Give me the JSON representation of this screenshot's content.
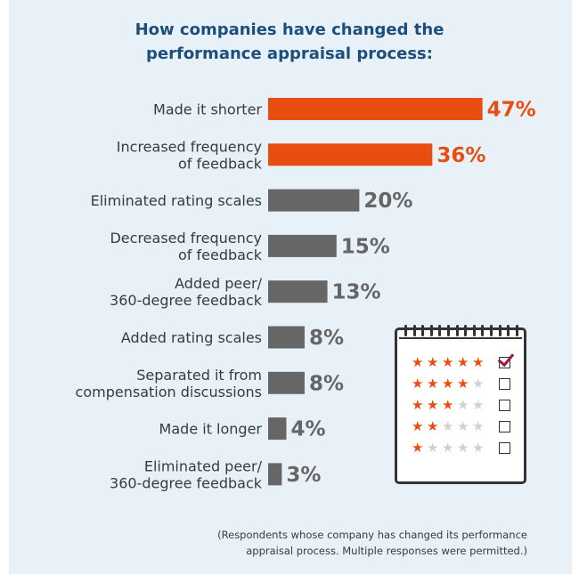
{
  "colors": {
    "highlight": "#e84e0f",
    "neutral": "#666666",
    "star_on": "#e84e0f",
    "star_off": "#d0d0d0",
    "title": "#1c4f7c"
  },
  "title_lines": [
    "How companies have changed the",
    "performance appraisal process:"
  ],
  "chart_data": {
    "type": "bar",
    "orientation": "horizontal",
    "title": "How companies have changed the performance appraisal process:",
    "categories": [
      [
        "Made it shorter"
      ],
      [
        "Increased frequency",
        "of feedback"
      ],
      [
        "Eliminated rating scales"
      ],
      [
        "Decreased frequency",
        "of feedback"
      ],
      [
        "Added peer/",
        "360-degree feedback"
      ],
      [
        "Added rating scales"
      ],
      [
        "Separated it from",
        "compensation discussions"
      ],
      [
        "Made it longer"
      ],
      [
        "Eliminated peer/",
        "360-degree feedback"
      ]
    ],
    "values": [
      47,
      36,
      20,
      15,
      13,
      8,
      8,
      4,
      3
    ],
    "labels": [
      "47%",
      "36%",
      "20%",
      "15%",
      "13%",
      "8%",
      "8%",
      "4%",
      "3%"
    ],
    "highlighted": [
      true,
      true,
      false,
      false,
      false,
      false,
      false,
      false,
      false
    ],
    "unit": "%"
  },
  "footnote_lines": [
    "(Respondents whose company has changed its performance",
    "appraisal process. Multiple responses were permitted.)"
  ],
  "illustration": {
    "icon": "clipboard-rating-icon",
    "rows": [
      {
        "stars": 5,
        "checked": true
      },
      {
        "stars": 4,
        "checked": false
      },
      {
        "stars": 3,
        "checked": false
      },
      {
        "stars": 2,
        "checked": false
      },
      {
        "stars": 1,
        "checked": false
      }
    ]
  }
}
